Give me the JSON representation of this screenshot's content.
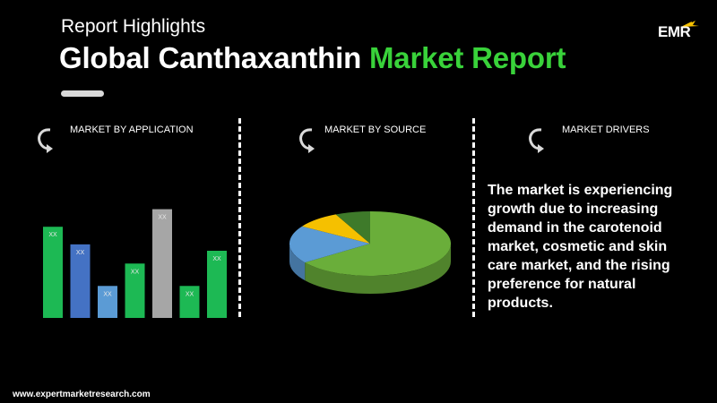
{
  "header": {
    "subtitle": "Report Highlights",
    "title_white": "Global Canthaxanthin",
    "title_green": "Market Report"
  },
  "logo": {
    "text": "EMR"
  },
  "sections": {
    "application": {
      "title": "MARKET BY APPLICATION"
    },
    "source": {
      "title": "MARKET BY SOURCE"
    },
    "drivers": {
      "title": "MARKET DRIVERS",
      "text": "The market is experiencing growth due to increasing demand in the carotenoid market, cosmetic and skin care market, and the rising preference for natural products."
    }
  },
  "footer": {
    "url": "www.expertmarketresearch.com"
  },
  "colors": {
    "title_green": "#39d23a",
    "bar_green": "#1db954",
    "bar_blue_dark": "#4472c4",
    "bar_blue_light": "#5b9bd5",
    "bar_gray": "#a6a6a6",
    "pie_green": "#6aae3a",
    "pie_blue": "#5b9bd5",
    "pie_yellow": "#f5c000",
    "pie_dark_green": "#3e7a2a"
  },
  "chart_data": [
    {
      "type": "bar",
      "categories": [
        "",
        "",
        "",
        "",
        "",
        "",
        ""
      ],
      "values": [
        5.7,
        4.6,
        2.0,
        3.4,
        6.8,
        2.0,
        4.2
      ],
      "data_labels": [
        "XX",
        "XX",
        "XX",
        "XX",
        "XX",
        "XX",
        "XX"
      ],
      "bar_colors": [
        "#1db954",
        "#4472c4",
        "#5b9bd5",
        "#1db954",
        "#a6a6a6",
        "#1db954",
        "#1db954"
      ],
      "ylim": [
        0,
        7
      ],
      "grid": false
    },
    {
      "type": "pie",
      "labels": [
        "",
        "",
        "",
        ""
      ],
      "values": [
        65,
        19,
        9,
        7
      ],
      "colors": [
        "#6aae3a",
        "#5b9bd5",
        "#f5c000",
        "#3e7a2a"
      ],
      "style": "3d"
    }
  ]
}
